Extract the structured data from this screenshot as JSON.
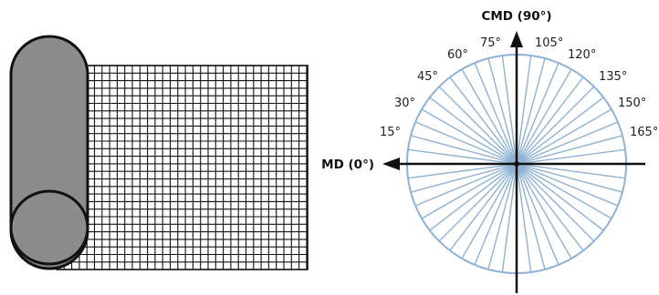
{
  "labels": {
    "md_axis": "MD (0°)",
    "cmd_axis": "CMD (90°)"
  },
  "angle_labels": [
    "15°",
    "30°",
    "45°",
    "60°",
    "75°",
    "105°",
    "120°",
    "135°",
    "150°",
    "165°"
  ],
  "colors": {
    "roll_fill": "#8c8c8c",
    "outline": "#111111",
    "spokes": "#8fb1d3",
    "axes": "#111111"
  }
}
